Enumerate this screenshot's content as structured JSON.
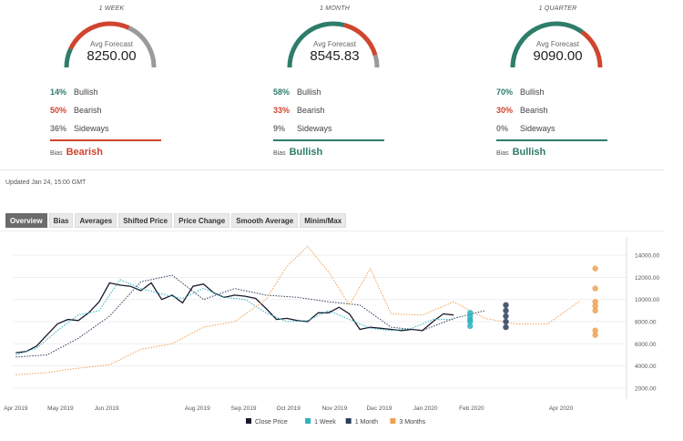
{
  "panels": [
    {
      "title": "1 WEEK",
      "avg_label": "Avg Forecast",
      "avg_value": "8250.00",
      "stats": [
        {
          "pct": "14%",
          "label": "Bullish",
          "tone": "g"
        },
        {
          "pct": "50%",
          "label": "Bearish",
          "tone": "r"
        },
        {
          "pct": "36%",
          "label": "Sideways",
          "tone": "n"
        }
      ],
      "bias_label": "Bias",
      "bias_value": "Bearish",
      "bias_color": "#d0452f",
      "gauge": {
        "bullish": 0.14,
        "bearish": 0.5,
        "sideways": 0.36
      }
    },
    {
      "title": "1 MONTH",
      "avg_label": "Avg Forecast",
      "avg_value": "8545.83",
      "stats": [
        {
          "pct": "58%",
          "label": "Bullish",
          "tone": "g"
        },
        {
          "pct": "33%",
          "label": "Bearish",
          "tone": "r"
        },
        {
          "pct": "9%",
          "label": "Sideways",
          "tone": "n"
        }
      ],
      "bias_label": "Bias",
      "bias_value": "Bullish",
      "bias_color": "#2e7d6a",
      "gauge": {
        "bullish": 0.58,
        "bearish": 0.33,
        "sideways": 0.09
      }
    },
    {
      "title": "1 QUARTER",
      "avg_label": "Avg Forecast",
      "avg_value": "9090.00",
      "stats": [
        {
          "pct": "70%",
          "label": "Bullish",
          "tone": "g"
        },
        {
          "pct": "30%",
          "label": "Bearish",
          "tone": "r"
        },
        {
          "pct": "0%",
          "label": "Sideways",
          "tone": "n"
        }
      ],
      "bias_label": "Bias",
      "bias_value": "Bullish",
      "bias_color": "#2e7d6a",
      "gauge": {
        "bullish": 0.7,
        "bearish": 0.3,
        "sideways": 0.0
      }
    }
  ],
  "colors": {
    "bullish": "#2e7d6a",
    "bearish": "#d0452f",
    "sideways": "#9a9a9a"
  },
  "updated": "Updated Jan 24, 15:00 GMT",
  "tabs": [
    {
      "label": "Overview",
      "active": true
    },
    {
      "label": "Bias",
      "active": false
    },
    {
      "label": "Averages",
      "active": false
    },
    {
      "label": "Shifted Price",
      "active": false
    },
    {
      "label": "Price Change",
      "active": false
    },
    {
      "label": "Smooth Average",
      "active": false
    },
    {
      "label": "Minim/Max",
      "active": false
    }
  ],
  "chart_data": {
    "type": "line",
    "x_ticks": [
      "Apr 2019",
      "May 2019",
      "Jun 2019",
      "Aug 2019",
      "Sep 2019",
      "Oct 2019",
      "Nov 2019",
      "Dec 2019",
      "Jan 2020",
      "Feb 2020",
      "Apr 2020"
    ],
    "y_ticks": [
      "14000.00",
      "12000.00",
      "10000.00",
      "8000.00",
      "6000.00",
      "4000.00",
      "2000.00"
    ],
    "ylim": [
      1500,
      15000
    ],
    "legend_position": "bottom",
    "series": [
      {
        "name": "Close Price",
        "color": "#1a1a2e",
        "style": "solid",
        "x": [
          "2019-04-01",
          "2019-04-08",
          "2019-04-15",
          "2019-04-22",
          "2019-04-29",
          "2019-05-06",
          "2019-05-13",
          "2019-05-20",
          "2019-05-27",
          "2019-06-03",
          "2019-06-10",
          "2019-06-17",
          "2019-06-24",
          "2019-07-01",
          "2019-07-08",
          "2019-07-15",
          "2019-07-22",
          "2019-07-29",
          "2019-08-05",
          "2019-08-12",
          "2019-08-19",
          "2019-08-26",
          "2019-09-02",
          "2019-09-09",
          "2019-09-16",
          "2019-09-23",
          "2019-09-30",
          "2019-10-07",
          "2019-10-14",
          "2019-10-21",
          "2019-10-28",
          "2019-11-04",
          "2019-11-11",
          "2019-11-18",
          "2019-11-25",
          "2019-12-02",
          "2019-12-09",
          "2019-12-16",
          "2019-12-23",
          "2019-12-30",
          "2020-01-06",
          "2020-01-13",
          "2020-01-20"
        ],
        "y": [
          5200,
          5300,
          5800,
          6800,
          7800,
          8200,
          8100,
          8800,
          9800,
          11500,
          11300,
          11200,
          10800,
          11500,
          10000,
          10400,
          9700,
          11200,
          11400,
          10600,
          10200,
          10400,
          10300,
          10100,
          9200,
          8200,
          8300,
          8100,
          8000,
          8800,
          8800,
          9300,
          8700,
          7300,
          7500,
          7400,
          7300,
          7200,
          7300,
          7200,
          8000,
          8700,
          8600
        ]
      },
      {
        "name": "1 Week",
        "color": "#2bb3c0",
        "style": "dotted",
        "x": [
          "2019-04-01",
          "2019-04-15",
          "2019-04-29",
          "2019-05-13",
          "2019-05-27",
          "2019-06-10",
          "2019-06-24",
          "2019-07-08",
          "2019-07-22",
          "2019-08-05",
          "2019-08-19",
          "2019-09-02",
          "2019-09-16",
          "2019-09-30",
          "2019-10-14",
          "2019-10-28",
          "2019-11-11",
          "2019-11-25",
          "2019-12-09",
          "2019-12-23",
          "2020-01-06",
          "2020-01-20"
        ],
        "y": [
          5000,
          5600,
          7200,
          8600,
          9000,
          11800,
          11000,
          10500,
          10100,
          11000,
          10200,
          10000,
          8800,
          8000,
          8100,
          9000,
          8200,
          7400,
          7200,
          7400,
          8200,
          8200
        ]
      },
      {
        "name": "1 Month",
        "color": "#2c3e5a",
        "style": "dotted",
        "x": [
          "2019-04-01",
          "2019-04-22",
          "2019-05-13",
          "2019-06-03",
          "2019-06-24",
          "2019-07-15",
          "2019-08-05",
          "2019-08-26",
          "2019-09-16",
          "2019-10-07",
          "2019-10-28",
          "2019-11-18",
          "2019-12-09",
          "2019-12-30",
          "2020-01-20",
          "2020-02-10"
        ],
        "y": [
          4800,
          5000,
          6500,
          8500,
          11600,
          12200,
          10000,
          11000,
          10400,
          10200,
          9800,
          9500,
          7500,
          7200,
          8300,
          9000
        ]
      },
      {
        "name": "3 Months",
        "color": "#f0a050",
        "style": "dotted",
        "x": [
          "2019-04-01",
          "2019-04-22",
          "2019-05-13",
          "2019-06-03",
          "2019-06-24",
          "2019-07-15",
          "2019-08-05",
          "2019-08-26",
          "2019-09-16",
          "2019-09-30",
          "2019-10-14",
          "2019-10-28",
          "2019-11-11",
          "2019-11-25",
          "2019-12-09",
          "2019-12-30",
          "2020-01-20",
          "2020-02-10",
          "2020-03-02",
          "2020-03-23",
          "2020-04-13"
        ],
        "y": [
          3200,
          3400,
          3800,
          4100,
          5500,
          6000,
          7500,
          8000,
          10000,
          13000,
          14800,
          12500,
          9500,
          12800,
          8700,
          8600,
          9800,
          8300,
          7800,
          7800,
          9800
        ]
      }
    ],
    "forecast_points": [
      {
        "series": "1 Week",
        "x": "2020-01-31",
        "y": [
          7600,
          8000,
          8200,
          8500,
          8800
        ]
      },
      {
        "series": "1 Month",
        "x": "2020-02-24",
        "y": [
          7500,
          8000,
          8500,
          9000,
          9500
        ]
      },
      {
        "series": "3 Months",
        "x": "2020-04-24",
        "y": [
          6800,
          7200,
          9000,
          9400,
          9800,
          11000,
          12800
        ]
      }
    ]
  }
}
